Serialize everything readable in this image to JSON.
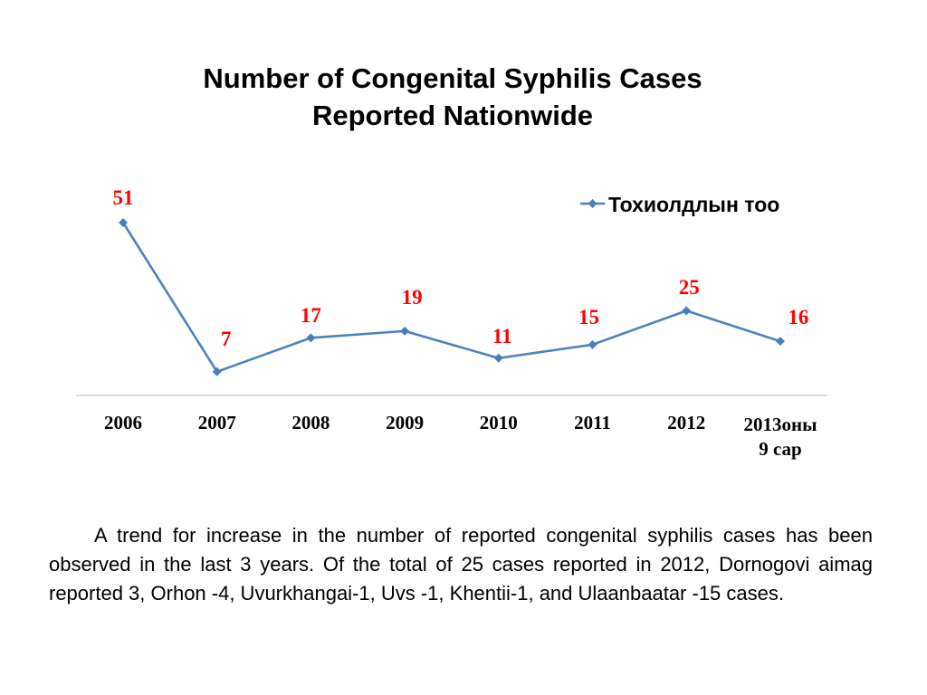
{
  "chart_data": {
    "type": "line",
    "title_lines": [
      "Number of Congenital Syphilis Cases",
      "Reported Nationwide"
    ],
    "categories": [
      "2006",
      "2007",
      "2008",
      "2009",
      "2010",
      "2011",
      "2012",
      "2013оны 9 сар"
    ],
    "category_lines": [
      [
        "2006"
      ],
      [
        "2007"
      ],
      [
        "2008"
      ],
      [
        "2009"
      ],
      [
        "2010"
      ],
      [
        "2011"
      ],
      [
        "2012"
      ],
      [
        "2013оны",
        "9 сар"
      ]
    ],
    "series": [
      {
        "name": "Тохиолдлын тоо",
        "values": [
          51,
          7,
          17,
          19,
          11,
          15,
          25,
          16
        ]
      }
    ],
    "data_labels": [
      "51",
      "7",
      "17",
      "19",
      "11",
      "15",
      "25",
      "16"
    ],
    "legend": {
      "label": "Тохиолдлын тоо",
      "position": "top-right"
    },
    "ylim": [
      0,
      53
    ],
    "grid": false,
    "colors": {
      "line": "#4f81bd",
      "marker": "#4a7ebb",
      "label": "#ff0000",
      "axis": "#c8c8c8"
    }
  },
  "note": "A trend for increase in the number of reported congenital syphilis cases has been observed in the last 3 years. Of the total of 25 cases reported in 2012, Dornogovi aimag reported 3, Orhon -4, Uvurkhangai-1, Uvs -1, Khentii-1, and Ulaanbaatar -15 cases."
}
